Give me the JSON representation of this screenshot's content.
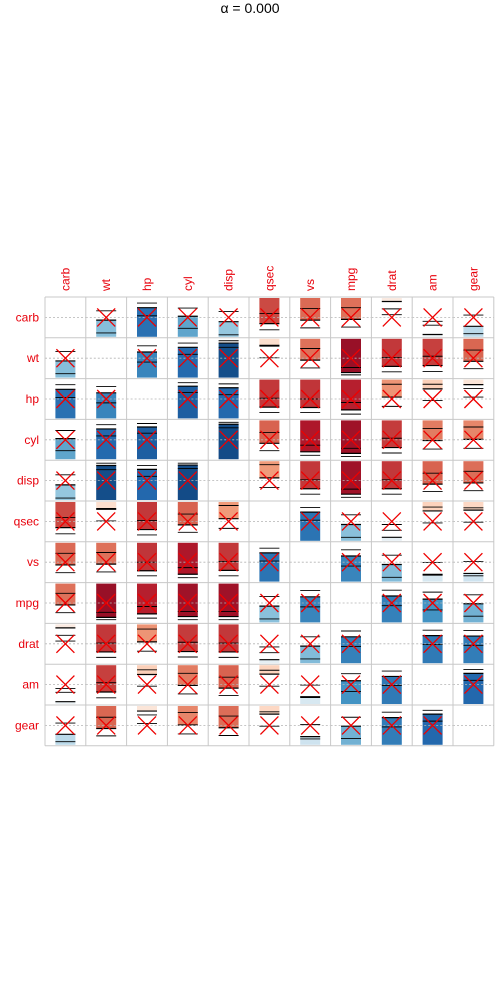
{
  "chart_data": {
    "type": "heatmap",
    "title": "α = 0.000",
    "method": "bar-correlogram",
    "variables": [
      "carb",
      "wt",
      "hp",
      "cyl",
      "disp",
      "qsec",
      "vs",
      "mpg",
      "drat",
      "am",
      "gear"
    ],
    "correlation": [
      [
        1.0,
        0.43,
        0.75,
        0.53,
        0.39,
        -0.66,
        -0.57,
        -0.55,
        -0.09,
        0.06,
        0.27
      ],
      [
        0.43,
        1.0,
        0.66,
        0.78,
        0.89,
        -0.17,
        -0.55,
        -0.87,
        -0.71,
        -0.69,
        -0.58
      ],
      [
        0.75,
        0.66,
        1.0,
        0.83,
        0.79,
        -0.71,
        -0.72,
        -0.78,
        -0.45,
        -0.24,
        -0.13
      ],
      [
        0.53,
        0.78,
        0.83,
        1.0,
        0.9,
        -0.59,
        -0.81,
        -0.85,
        -0.7,
        -0.52,
        -0.49
      ],
      [
        0.39,
        0.89,
        0.79,
        0.9,
        1.0,
        -0.43,
        -0.71,
        -0.85,
        -0.71,
        -0.59,
        -0.56
      ],
      [
        -0.66,
        -0.17,
        -0.71,
        -0.59,
        -0.43,
        1.0,
        0.74,
        0.42,
        0.09,
        -0.23,
        -0.21
      ],
      [
        -0.57,
        -0.55,
        -0.72,
        -0.81,
        -0.71,
        0.74,
        1.0,
        0.66,
        0.44,
        0.17,
        0.21
      ],
      [
        -0.55,
        -0.87,
        -0.78,
        -0.85,
        -0.85,
        0.42,
        0.66,
        1.0,
        0.68,
        0.6,
        0.48
      ],
      [
        -0.09,
        -0.71,
        -0.45,
        -0.7,
        -0.71,
        0.09,
        0.44,
        0.68,
        1.0,
        0.71,
        0.7
      ],
      [
        0.06,
        -0.69,
        -0.24,
        -0.52,
        -0.59,
        -0.23,
        0.17,
        0.6,
        0.71,
        1.0,
        0.79
      ],
      [
        0.27,
        -0.58,
        -0.13,
        -0.49,
        -0.56,
        -0.21,
        0.21,
        0.48,
        0.7,
        0.79,
        1.0
      ]
    ],
    "ci_lower": [
      [
        1.0,
        0.1,
        0.54,
        0.22,
        0.05,
        -0.82,
        -0.77,
        -0.75,
        -0.43,
        -0.3,
        -0.08
      ],
      [
        0.1,
        1.0,
        0.4,
        0.6,
        0.78,
        -0.49,
        -0.75,
        -0.93,
        -0.85,
        -0.84,
        -0.77
      ],
      [
        0.54,
        0.4,
        1.0,
        0.67,
        0.61,
        -0.85,
        -0.85,
        -0.89,
        -0.69,
        -0.54,
        -0.45
      ],
      [
        0.22,
        0.6,
        0.67,
        1.0,
        0.81,
        -0.78,
        -0.9,
        -0.93,
        -0.84,
        -0.74,
        -0.72
      ],
      [
        0.05,
        0.78,
        0.61,
        0.81,
        1.0,
        -0.68,
        -0.85,
        -0.93,
        -0.85,
        -0.78,
        -0.76
      ],
      [
        -0.82,
        -0.49,
        -0.85,
        -0.78,
        -0.68,
        1.0,
        0.53,
        0.09,
        -0.27,
        -0.54,
        -0.52
      ],
      [
        -0.77,
        -0.75,
        -0.85,
        -0.9,
        -0.85,
        0.53,
        1.0,
        0.4,
        0.11,
        -0.19,
        -0.15
      ],
      [
        -0.75,
        -0.93,
        -0.89,
        -0.93,
        -0.93,
        0.09,
        0.4,
        1.0,
        0.43,
        0.32,
        0.16
      ],
      [
        -0.43,
        -0.85,
        -0.69,
        -0.84,
        -0.85,
        -0.27,
        0.11,
        0.43,
        1.0,
        0.48,
        0.46
      ],
      [
        -0.3,
        -0.84,
        -0.54,
        -0.74,
        -0.78,
        -0.54,
        -0.19,
        0.32,
        0.48,
        1.0,
        0.61
      ],
      [
        -0.08,
        -0.77,
        -0.45,
        -0.72,
        -0.76,
        -0.52,
        -0.15,
        0.16,
        0.46,
        0.61,
        1.0
      ]
    ],
    "ci_upper": [
      [
        1.0,
        0.67,
        0.87,
        0.74,
        0.65,
        -0.4,
        -0.27,
        -0.25,
        0.28,
        0.4,
        0.56
      ],
      [
        0.67,
        1.0,
        0.82,
        0.89,
        0.95,
        0.19,
        -0.25,
        -0.74,
        -0.48,
        -0.45,
        -0.29
      ],
      [
        0.87,
        0.82,
        1.0,
        0.92,
        0.89,
        -0.48,
        -0.5,
        -0.59,
        -0.12,
        0.12,
        0.23
      ],
      [
        0.74,
        0.89,
        0.92,
        1.0,
        0.95,
        -0.31,
        -0.64,
        -0.72,
        -0.46,
        -0.21,
        -0.17
      ],
      [
        0.65,
        0.95,
        0.89,
        0.95,
        1.0,
        -0.09,
        -0.48,
        -0.72,
        -0.48,
        -0.31,
        -0.26
      ],
      [
        -0.4,
        0.19,
        -0.48,
        -0.31,
        -0.09,
        1.0,
        0.86,
        0.67,
        0.42,
        0.13,
        0.15
      ],
      [
        -0.27,
        -0.25,
        -0.5,
        -0.64,
        -0.48,
        0.86,
        1.0,
        0.82,
        0.68,
        0.49,
        0.52
      ],
      [
        -0.25,
        -0.74,
        -0.59,
        -0.72,
        -0.72,
        0.67,
        0.82,
        1.0,
        0.83,
        0.78,
        0.71
      ],
      [
        0.28,
        -0.48,
        -0.12,
        -0.46,
        -0.48,
        0.42,
        0.68,
        0.83,
        1.0,
        0.85,
        0.84
      ],
      [
        0.4,
        -0.45,
        0.12,
        -0.21,
        -0.31,
        0.13,
        0.49,
        0.78,
        0.85,
        1.0,
        0.89
      ],
      [
        0.56,
        -0.29,
        0.23,
        -0.17,
        -0.26,
        0.15,
        0.52,
        0.71,
        0.84,
        0.89,
        1.0
      ]
    ],
    "crossed_nonsignificant": true,
    "colormap": "red-blue diverging (negative = red, positive = blue)",
    "colors": {
      "label": "#e8000b",
      "cross": "#ee0000",
      "grid": "#c8c8c8",
      "scale": [
        "#67001f",
        "#b2182b",
        "#d6604d",
        "#f4a582",
        "#fddbc7",
        "#f7f7f7",
        "#d1e5f0",
        "#92c5de",
        "#4393c3",
        "#2166ac",
        "#053061"
      ]
    },
    "xlabel": "",
    "ylabel": ""
  }
}
